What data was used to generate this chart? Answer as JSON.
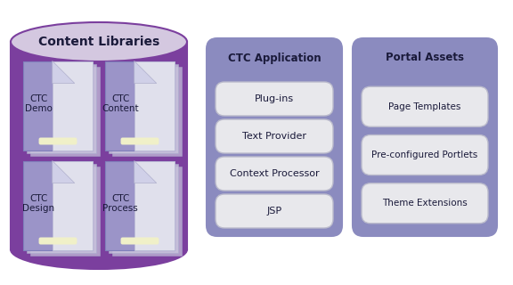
{
  "title": "Content Libraries",
  "cylinder_color": "#7B3F9E",
  "ellipse_color_label": "#D4C8E0",
  "folder_items": [
    {
      "label": "CTC\nDemo",
      "col": 0,
      "row": 0
    },
    {
      "label": "CTC\nContent",
      "col": 1,
      "row": 0
    },
    {
      "label": "CTC\nDesign",
      "col": 0,
      "row": 1
    },
    {
      "label": "CTC\nProcess",
      "col": 1,
      "row": 1
    }
  ],
  "ctc_app_title": "CTC Application",
  "ctc_app_items": [
    "Plug-ins",
    "Text Provider",
    "Context Processor",
    "JSP"
  ],
  "portal_title": "Portal Assets",
  "portal_items": [
    "Page Templates",
    "Pre-configured Portlets",
    "Theme Extensions"
  ],
  "panel_bg": "#8B8BBF",
  "panel_border": "#8B8BBF",
  "item_bg": "#E8E8EC",
  "item_border": "#BBBBCC",
  "folder_main_color": "#9B94C8",
  "folder_page_color": "#E0E0EC",
  "folder_shadow_color": "#C8C4DC",
  "tab_color": "#F0F0C8",
  "background": "#FFFFFF",
  "title_color": "#1a1a3a",
  "panel_title_color": "#1a1a3a"
}
